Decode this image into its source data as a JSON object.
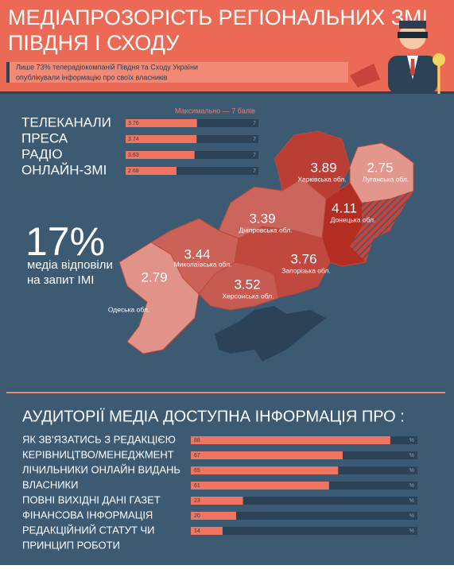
{
  "header": {
    "title_line1": "МЕДІАПРОЗОРІСТЬ РЕГІОНАЛЬНИХ ЗМІ",
    "title_line2": "ПІВДНЯ І СХОДУ",
    "subtitle_line1": "Лише 73% телерадіокомпаній Півдня та Сходу України",
    "subtitle_line2": "опублікували інформацію про своїх власників"
  },
  "scores": {
    "note": "Максимально — 7 балів",
    "max": 7,
    "items": [
      {
        "label": "ТЕЛЕКАНАЛИ",
        "value": 3.76
      },
      {
        "label": "ПРЕСА",
        "value": 3.74
      },
      {
        "label": "РАДІО",
        "value": 3.63
      },
      {
        "label": "ОНЛАЙН-ЗМІ",
        "value": 2.68
      }
    ]
  },
  "stat": {
    "value": "17%",
    "text_line1": "медіа відповіли",
    "text_line2": "на запит ІМІ"
  },
  "regions": [
    {
      "name": "Харківська обл.",
      "value": 3.89
    },
    {
      "name": "Луганська обл.",
      "value": 2.75
    },
    {
      "name": "Донецька обл.",
      "value": 4.11
    },
    {
      "name": "Дніпровська обл.",
      "value": 3.39
    },
    {
      "name": "Миколаївська обл.",
      "value": 3.44
    },
    {
      "name": "Запорізька обл.",
      "value": 3.76
    },
    {
      "name": "Херсонська обл.",
      "value": 3.52
    },
    {
      "name": "Одеська обл.",
      "value": 2.79
    }
  ],
  "audience": {
    "title": "АУДИТОРІЇ МЕДІА ДОСТУПНА ІНФОРМАЦІЯ ПРО :",
    "unit": "%",
    "xlim": [
      0,
      100
    ],
    "items": [
      {
        "label": "ЯК ЗВ'ЯЗАТИСЬ З РЕДАКЦІЄЮ",
        "value": 88
      },
      {
        "label": "КЕРІВНИЦТВО/МЕНЕДЖМЕНТ",
        "value": 67
      },
      {
        "label": "ЛІЧИЛЬНИКИ ОНЛАЙН ВИДАНЬ",
        "value": 65
      },
      {
        "label": "ВЛАСНИКИ",
        "value": 61
      },
      {
        "label": "ПОВНІ ВИХІДНІ ДАНІ ГАЗЕТ",
        "value": 23
      },
      {
        "label": "ФІНАНСОВА ІНФОРМАЦІЯ",
        "value": 20
      },
      {
        "label": "РЕДАКЦІЙНИЙ СТАТУТ ЧИ",
        "label2": "ПРИНЦИП РОБОТИ",
        "value": 14
      }
    ]
  }
}
